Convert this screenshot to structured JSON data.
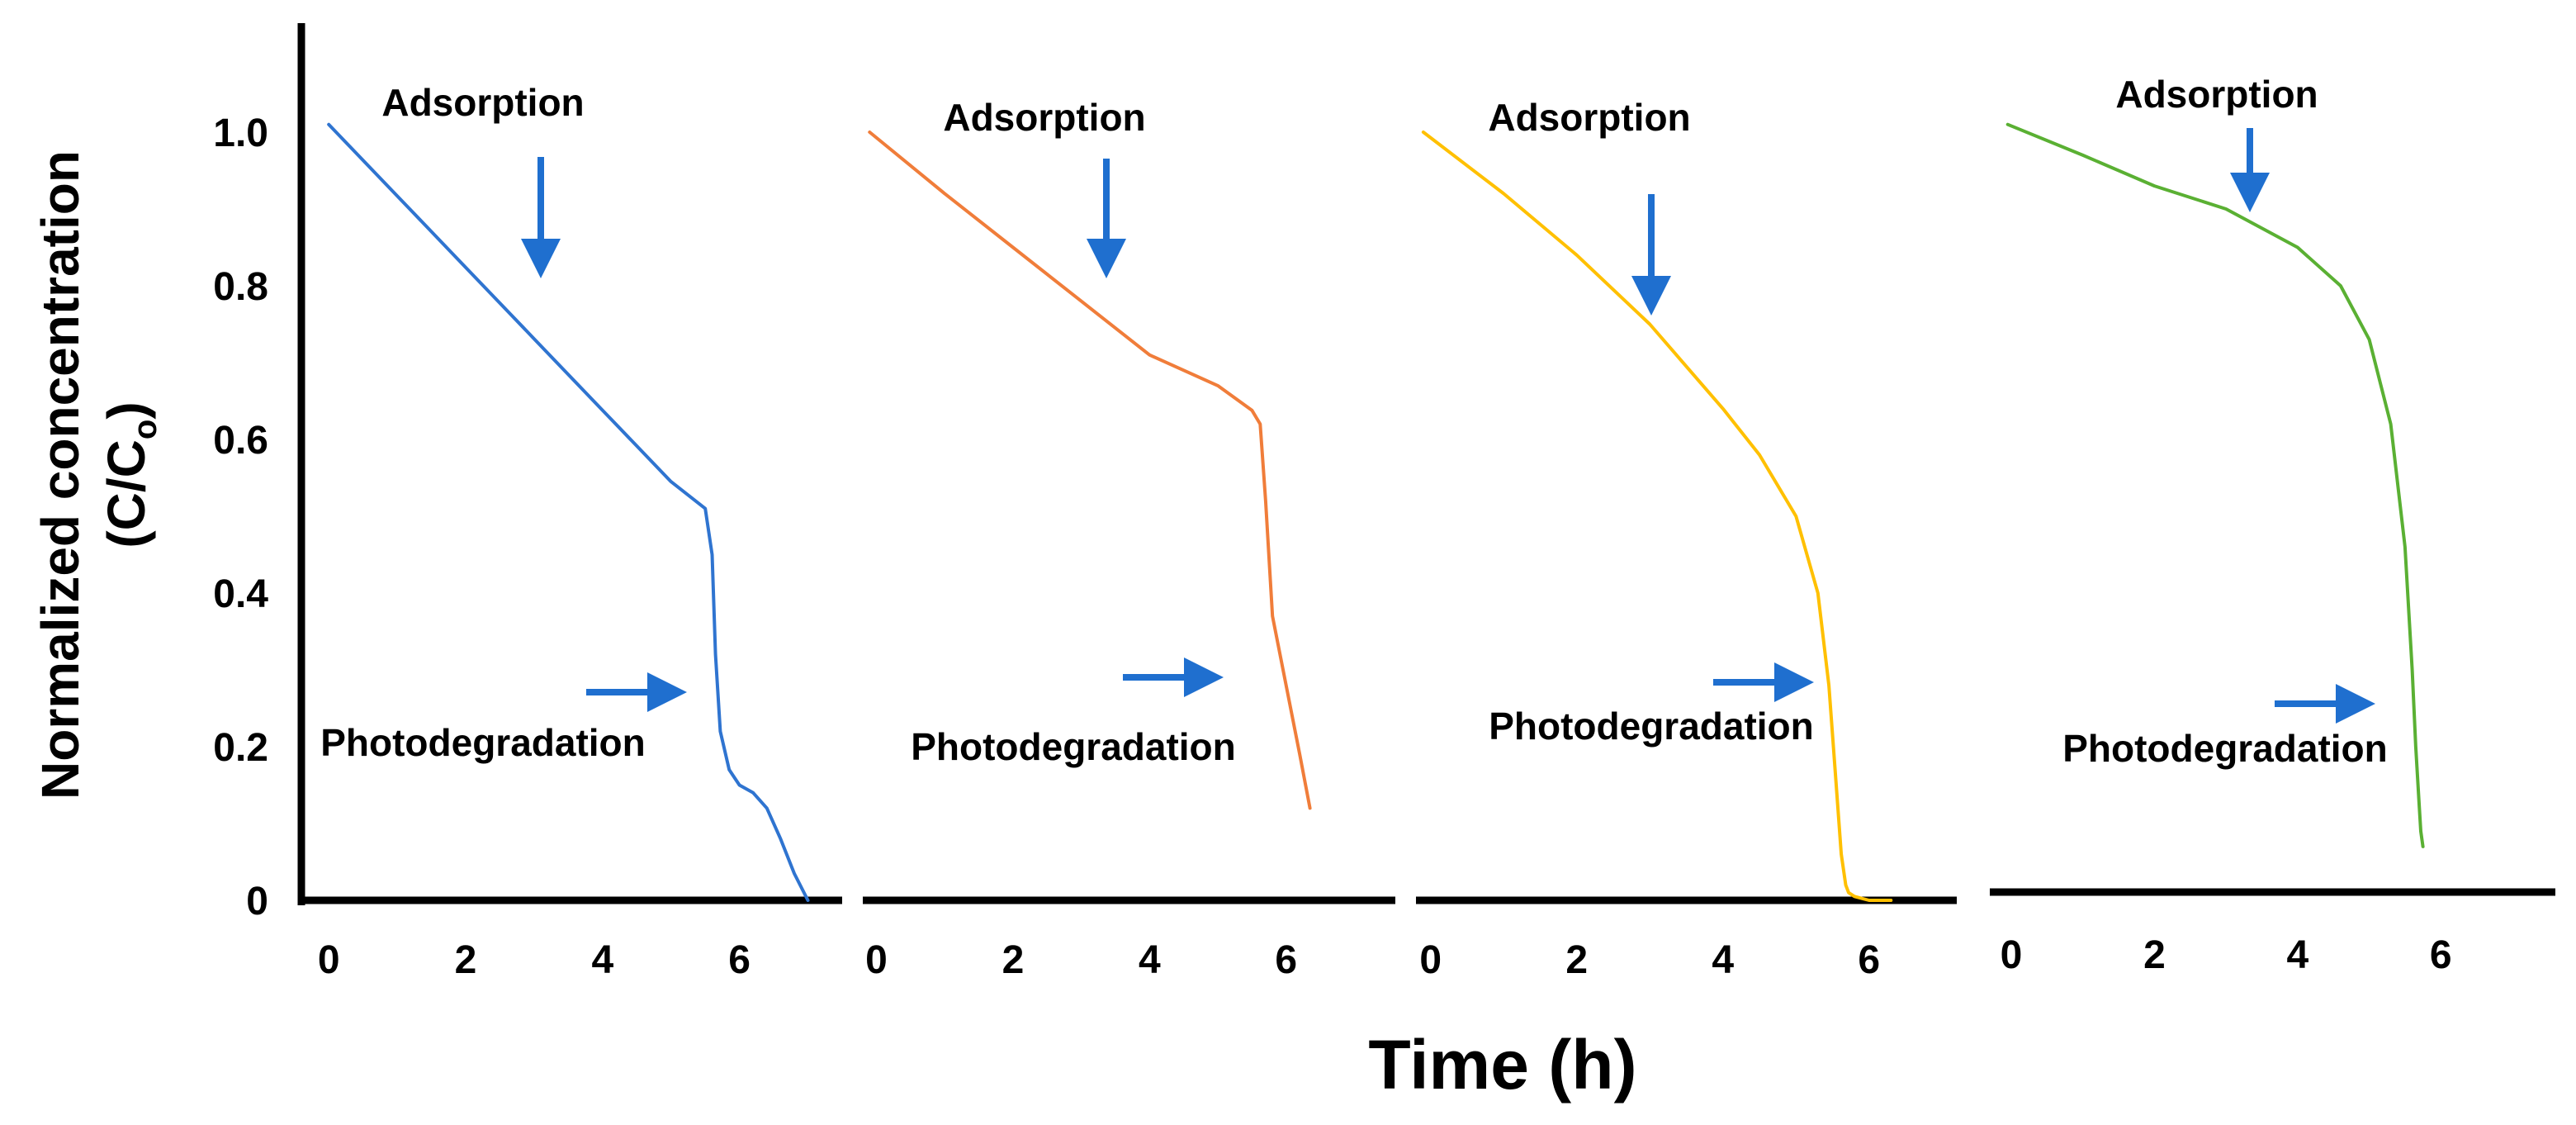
{
  "chart_data": {
    "type": "line",
    "ylabel_main": "Normalized concentration",
    "ylabel_sub_prefix": "(C/C",
    "ylabel_sub_subscript": "o",
    "ylabel_sub_suffix": ")",
    "xlabel": "Time (h)",
    "ylim": [
      0,
      1.1
    ],
    "yticks": [
      {
        "value": 0,
        "label": "0"
      },
      {
        "value": 0.2,
        "label": "0.2"
      },
      {
        "value": 0.4,
        "label": "0.4"
      },
      {
        "value": 0.6,
        "label": "0.6"
      },
      {
        "value": 0.8,
        "label": "0.8"
      },
      {
        "value": 1.0,
        "label": "1.0"
      }
    ],
    "grid": false,
    "annotations": {
      "adsorption": "Adsorption",
      "photodegradation": "Photodegradation"
    },
    "panels": [
      {
        "xticks": [
          "0",
          "2",
          "4",
          "6"
        ],
        "xlim": [
          -0.4,
          7.5
        ],
        "color": "#2f74d0",
        "series": {
          "x": [
            0,
            1,
            2,
            3,
            4,
            5,
            5.5,
            5.6,
            5.65,
            5.72,
            5.85,
            6.0,
            6.2,
            6.4,
            6.6,
            6.8,
            7.0
          ],
          "y": [
            1.01,
            0.917,
            0.824,
            0.731,
            0.638,
            0.545,
            0.51,
            0.45,
            0.32,
            0.22,
            0.17,
            0.15,
            0.14,
            0.12,
            0.08,
            0.035,
            0.0
          ]
        }
      },
      {
        "xticks": [
          "0",
          "2",
          "4",
          "6"
        ],
        "xlim": [
          -0.2,
          7.6
        ],
        "color": "#f07d3a",
        "series": {
          "x": [
            -0.1,
            1,
            2,
            3,
            4,
            5,
            5.5,
            5.62,
            5.7,
            5.8,
            6.0,
            6.2,
            6.35
          ],
          "y": [
            1.0,
            0.92,
            0.85,
            0.78,
            0.71,
            0.67,
            0.638,
            0.62,
            0.52,
            0.37,
            0.28,
            0.19,
            0.12
          ]
        }
      },
      {
        "xticks": [
          "0",
          "2",
          "4",
          "6"
        ],
        "xlim": [
          -0.2,
          7.2
        ],
        "color": "#ffc000",
        "series": {
          "x": [
            -0.1,
            1,
            2,
            3,
            4,
            4.5,
            5,
            5.3,
            5.45,
            5.55,
            5.62,
            5.68,
            5.72,
            5.8,
            6.0,
            6.3
          ],
          "y": [
            1.0,
            0.92,
            0.84,
            0.75,
            0.64,
            0.58,
            0.5,
            0.4,
            0.28,
            0.15,
            0.06,
            0.02,
            0.01,
            0.005,
            0.0,
            0.0
          ]
        }
      },
      {
        "xticks": [
          "0",
          "2",
          "4",
          "6"
        ],
        "xlim": [
          -0.3,
          7.6
        ],
        "color": "#5ab033",
        "series": {
          "x": [
            -0.05,
            1,
            2,
            3,
            4,
            4.6,
            5.0,
            5.3,
            5.5,
            5.6,
            5.65,
            5.7,
            5.72,
            5.75
          ],
          "y": [
            1.01,
            0.97,
            0.93,
            0.9,
            0.85,
            0.8,
            0.73,
            0.62,
            0.46,
            0.3,
            0.2,
            0.12,
            0.09,
            0.07
          ]
        }
      }
    ]
  }
}
